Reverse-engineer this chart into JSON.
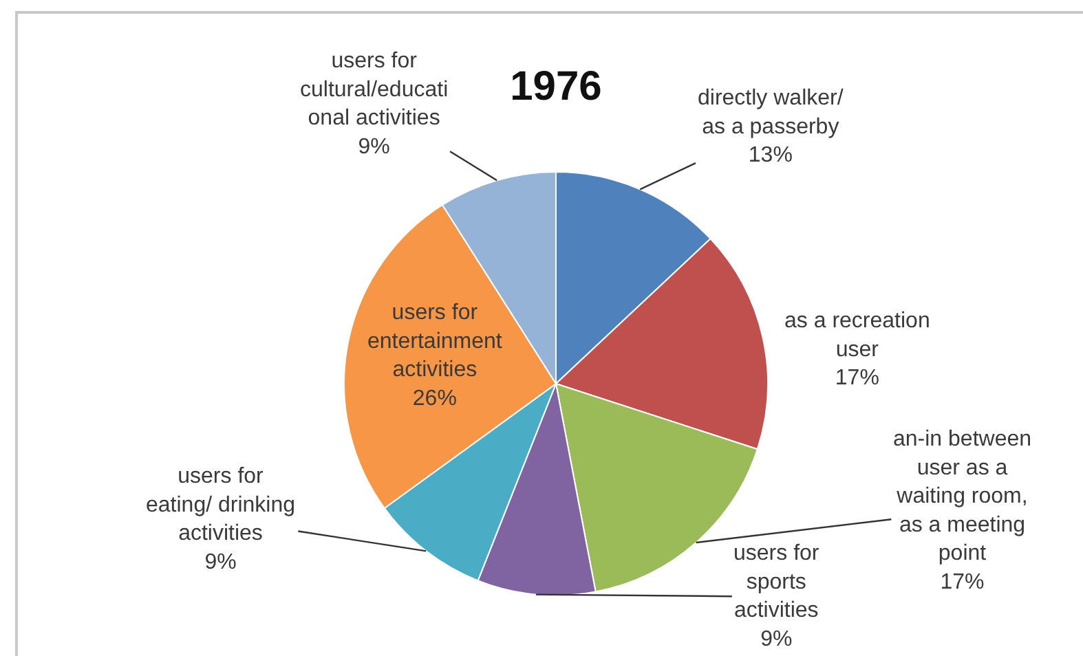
{
  "chart_data": {
    "type": "pie",
    "title": "1976",
    "categories": [
      "directly walker/\nas a passerby",
      "as a recreation\nuser",
      "an-in between\nuser as a\nwaiting room,\nas a meeting\npoint",
      "users for\nsports\nactivities",
      "users for\neating/ drinking\nactivities",
      "users for\nentertainment\nactivities",
      "users for\ncultural/educati\nonal activities"
    ],
    "values": [
      13,
      17,
      17,
      9,
      9,
      26,
      9
    ],
    "colors": [
      "#4f81bd",
      "#c0504d",
      "#9bbb59",
      "#8064a2",
      "#4bacc6",
      "#f79646",
      "#95b3d7"
    ],
    "value_labels": [
      "13%",
      "17%",
      "17%",
      "9%",
      "9%",
      "26%",
      "9%"
    ],
    "legend": false
  }
}
